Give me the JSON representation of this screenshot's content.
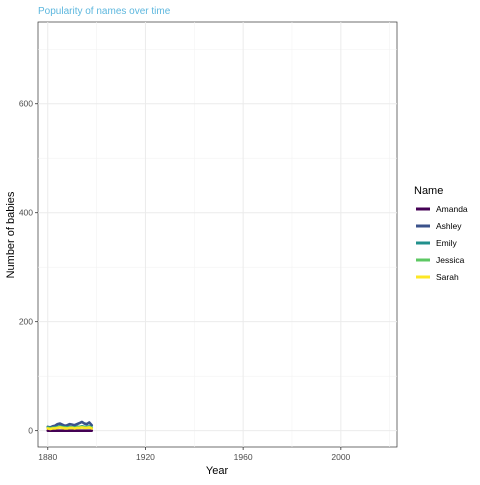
{
  "chart_data": {
    "type": "line",
    "title": "Popularity of names over time",
    "title_color": "#5DB7DE",
    "xlabel": "Year",
    "ylabel": "Number of babies",
    "xlim": [
      1876,
      2023
    ],
    "ylim": [
      -30,
      750
    ],
    "x_ticks": [
      1880,
      1920,
      1960,
      2000
    ],
    "y_ticks": [
      0,
      200,
      400,
      600
    ],
    "grid": true,
    "legend": {
      "title": "Name",
      "position": "right"
    },
    "series": [
      {
        "name": "Amanda",
        "color": "#440154",
        "x": [
          1880,
          1881,
          1882,
          1883,
          1884,
          1885,
          1886,
          1887,
          1888,
          1889,
          1890,
          1891,
          1892,
          1893,
          1894,
          1895,
          1896,
          1897,
          1898
        ],
        "y": [
          0,
          0,
          0,
          0,
          0,
          0,
          0,
          0,
          0,
          0,
          0,
          0,
          0,
          0,
          0,
          0,
          0,
          0,
          0
        ]
      },
      {
        "name": "Ashley",
        "color": "#3B528B",
        "x": [
          1880,
          1881,
          1882,
          1883,
          1884,
          1885,
          1886,
          1887,
          1888,
          1889,
          1890,
          1891,
          1892,
          1893,
          1894,
          1895,
          1896,
          1897,
          1898
        ],
        "y": [
          7,
          6,
          8,
          9,
          12,
          13,
          11,
          9,
          10,
          12,
          11,
          10,
          12,
          14,
          16,
          13,
          12,
          15,
          10
        ]
      },
      {
        "name": "Emily",
        "color": "#21908C",
        "x": [
          1880,
          1881,
          1882,
          1883,
          1884,
          1885,
          1886,
          1887,
          1888,
          1889,
          1890,
          1891,
          1892,
          1893,
          1894,
          1895,
          1896,
          1897,
          1898
        ],
        "y": [
          6,
          5,
          5,
          6,
          7,
          8,
          7,
          6,
          6,
          7,
          6,
          6,
          7,
          7,
          8,
          7,
          7,
          8,
          6
        ]
      },
      {
        "name": "Jessica",
        "color": "#5DC863",
        "x": [
          1880,
          1881,
          1882,
          1883,
          1884,
          1885,
          1886,
          1887,
          1888,
          1889,
          1890,
          1891,
          1892,
          1893,
          1894,
          1895,
          1896,
          1897,
          1898
        ],
        "y": [
          5,
          4,
          5,
          5,
          6,
          7,
          6,
          6,
          5,
          6,
          6,
          5,
          6,
          7,
          7,
          6,
          6,
          7,
          5
        ]
      },
      {
        "name": "Sarah",
        "color": "#FDE725",
        "x": [
          1880,
          1881,
          1882,
          1883,
          1884,
          1885,
          1886,
          1887,
          1888,
          1889,
          1890,
          1891,
          1892,
          1893,
          1894,
          1895,
          1896,
          1897,
          1898
        ],
        "y": [
          4,
          3,
          4,
          4,
          5,
          6,
          5,
          4,
          4,
          5,
          5,
          4,
          5,
          5,
          6,
          5,
          5,
          6,
          4
        ]
      }
    ]
  }
}
